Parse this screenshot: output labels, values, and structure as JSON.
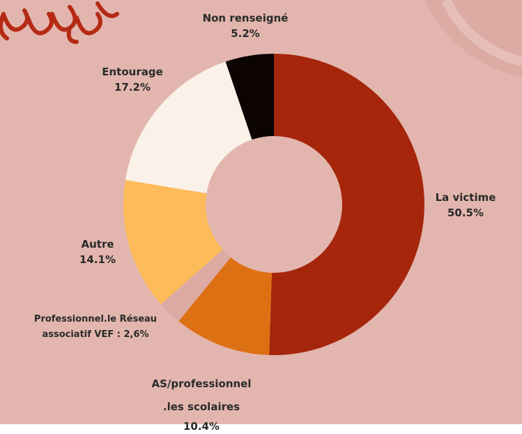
{
  "chart_data": {
    "type": "donut",
    "categories": [
      "La victime",
      "AS/professionnel .les scolaires",
      "Professionnel.le Réseau associatif VEF : 2,6%",
      "Autre",
      "Entourage",
      "Non renseigné"
    ],
    "values": [
      50.5,
      10.4,
      2.6,
      14.1,
      17.2,
      5.2
    ],
    "value_labels": [
      "50.5%",
      "10.4%",
      null,
      "14.1%",
      "17.2%",
      "5.2%"
    ],
    "colors": [
      "#a5260b",
      "#de7014",
      "#dcaaa3",
      "#fdbb5a",
      "#faf1e8",
      "#0b0403"
    ]
  }
}
